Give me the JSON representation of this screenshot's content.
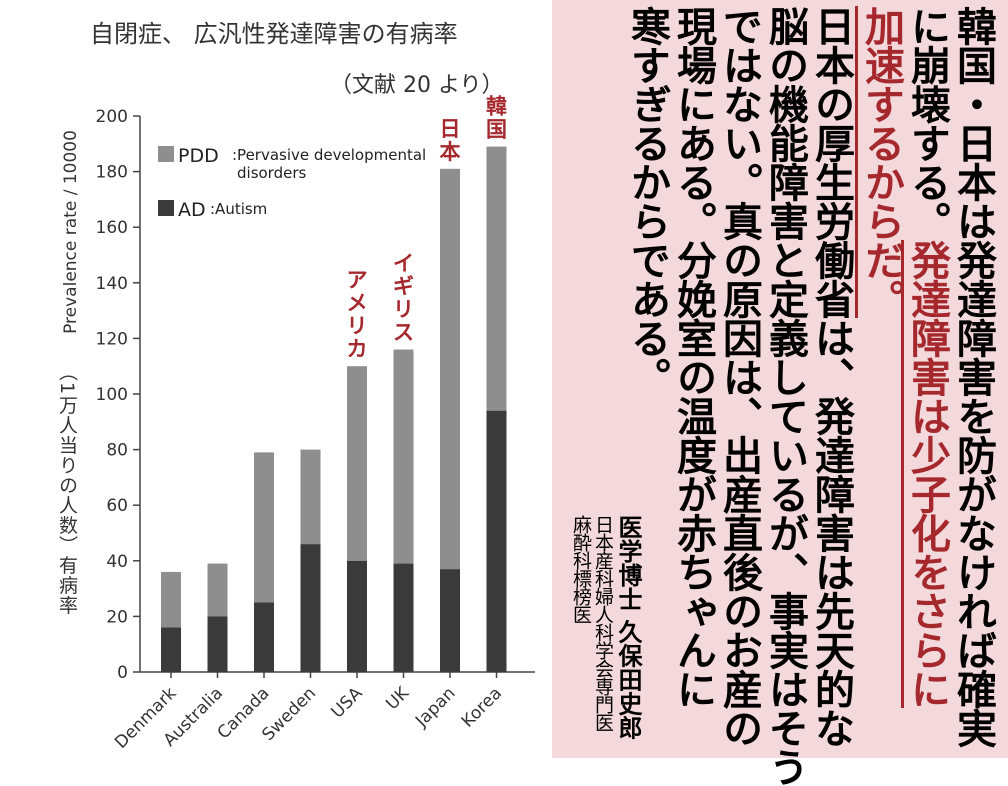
{
  "chart_data": {
    "type": "bar",
    "title": "自閉症、 広汎性発達障害の有病率",
    "subtitle": "（文献 20 より）",
    "ylabel_en": "Prevalence rate / 10000",
    "ylabel_jp": "（1万人当りの人数）有病率",
    "ylim": [
      0,
      200
    ],
    "yticks": [
      "0",
      "20",
      "40",
      "60",
      "80",
      "100",
      "120",
      "140",
      "160",
      "180",
      "200"
    ],
    "categories": [
      "Denmark",
      "Australia",
      "Canada",
      "Sweden",
      "USA",
      "UK",
      "Japan",
      "Korea"
    ],
    "series": [
      {
        "name": "AD :Autism",
        "values": [
          16,
          20,
          25,
          46,
          40,
          39,
          37,
          94
        ]
      },
      {
        "name": "PDD :Pervasive developmental disorders",
        "values": [
          20,
          19,
          54,
          34,
          70,
          77,
          144,
          95
        ]
      }
    ],
    "legend": {
      "pdd_abbr": "PDD",
      "pdd_desc1": ":Pervasive developmental",
      "pdd_desc2": "disorders",
      "ad_abbr": "AD",
      "ad_desc": ":Autism",
      "pdd_color": "#8e8e8e",
      "ad_color": "#3a3a3a"
    },
    "annotations": [
      {
        "text": "アメリカ",
        "category": "USA"
      },
      {
        "text": "イギリス",
        "category": "UK"
      },
      {
        "text": "日本",
        "category": "Japan"
      },
      {
        "text": "韓国",
        "category": "Korea"
      }
    ],
    "annotation_color": "#a5282d",
    "grid": false
  },
  "text": {
    "col1": "韓国・日本は発達障害を防がなければ確実",
    "col2": "に崩壊する。",
    "col2_red": "発達障害は少子化をさらに",
    "col3_red": "加速するからだ。",
    "col4": "日本の厚生労働省は、発達障害は先天的な",
    "col5": "脳の機能障害と定義しているが、事実はそう",
    "col6": "ではない。真の原因は、出産直後のお産の",
    "col7": "現場にある。分娩室の温度が赤ちゃんに",
    "col8": "寒すぎるからである。",
    "author_title": "医学博士 久保田史郎",
    "author_aff1": "日本産科婦人科学会専門医",
    "author_aff2": "麻酔科標榜医"
  }
}
